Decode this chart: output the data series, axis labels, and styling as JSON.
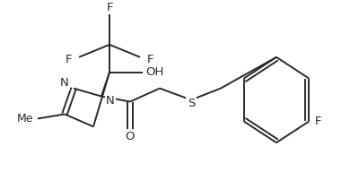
{
  "background_color": "#ffffff",
  "line_color": "#2a2a2a",
  "figsize": [
    3.9,
    2.11
  ],
  "dpi": 100,
  "xlim": [
    0,
    390
  ],
  "ylim": [
    0,
    211
  ]
}
